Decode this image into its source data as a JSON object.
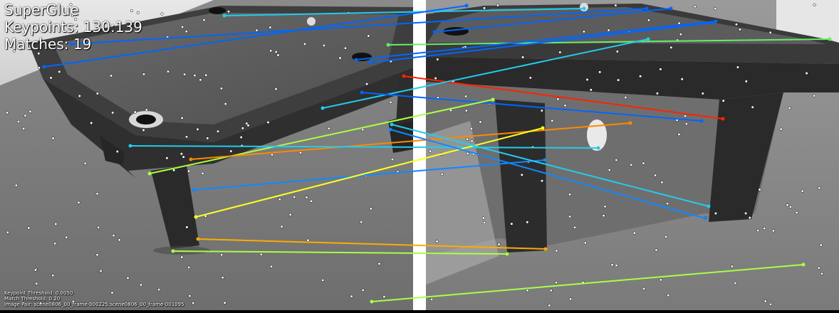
{
  "hud": {
    "method": "SuperGlue",
    "keypoints": "Keypoints: 130:139",
    "matches": "Matches: 19",
    "keypoint_threshold": "Keypoint Threshold: 0.0050",
    "match_threshold": "Match Threshold: 0.20",
    "image_pair": "Image Pair: scene0806_00_frame-000225:scene0806_00_frame-001095"
  },
  "colors": {
    "separator": "#ffffff",
    "keypoint": "#ffffff",
    "palette": [
      "#ff2200",
      "#ff8800",
      "#ffaa00",
      "#ffff22",
      "#aaff44",
      "#66ee66",
      "#22ccee",
      "#1188ff",
      "#0066ff"
    ]
  }
}
